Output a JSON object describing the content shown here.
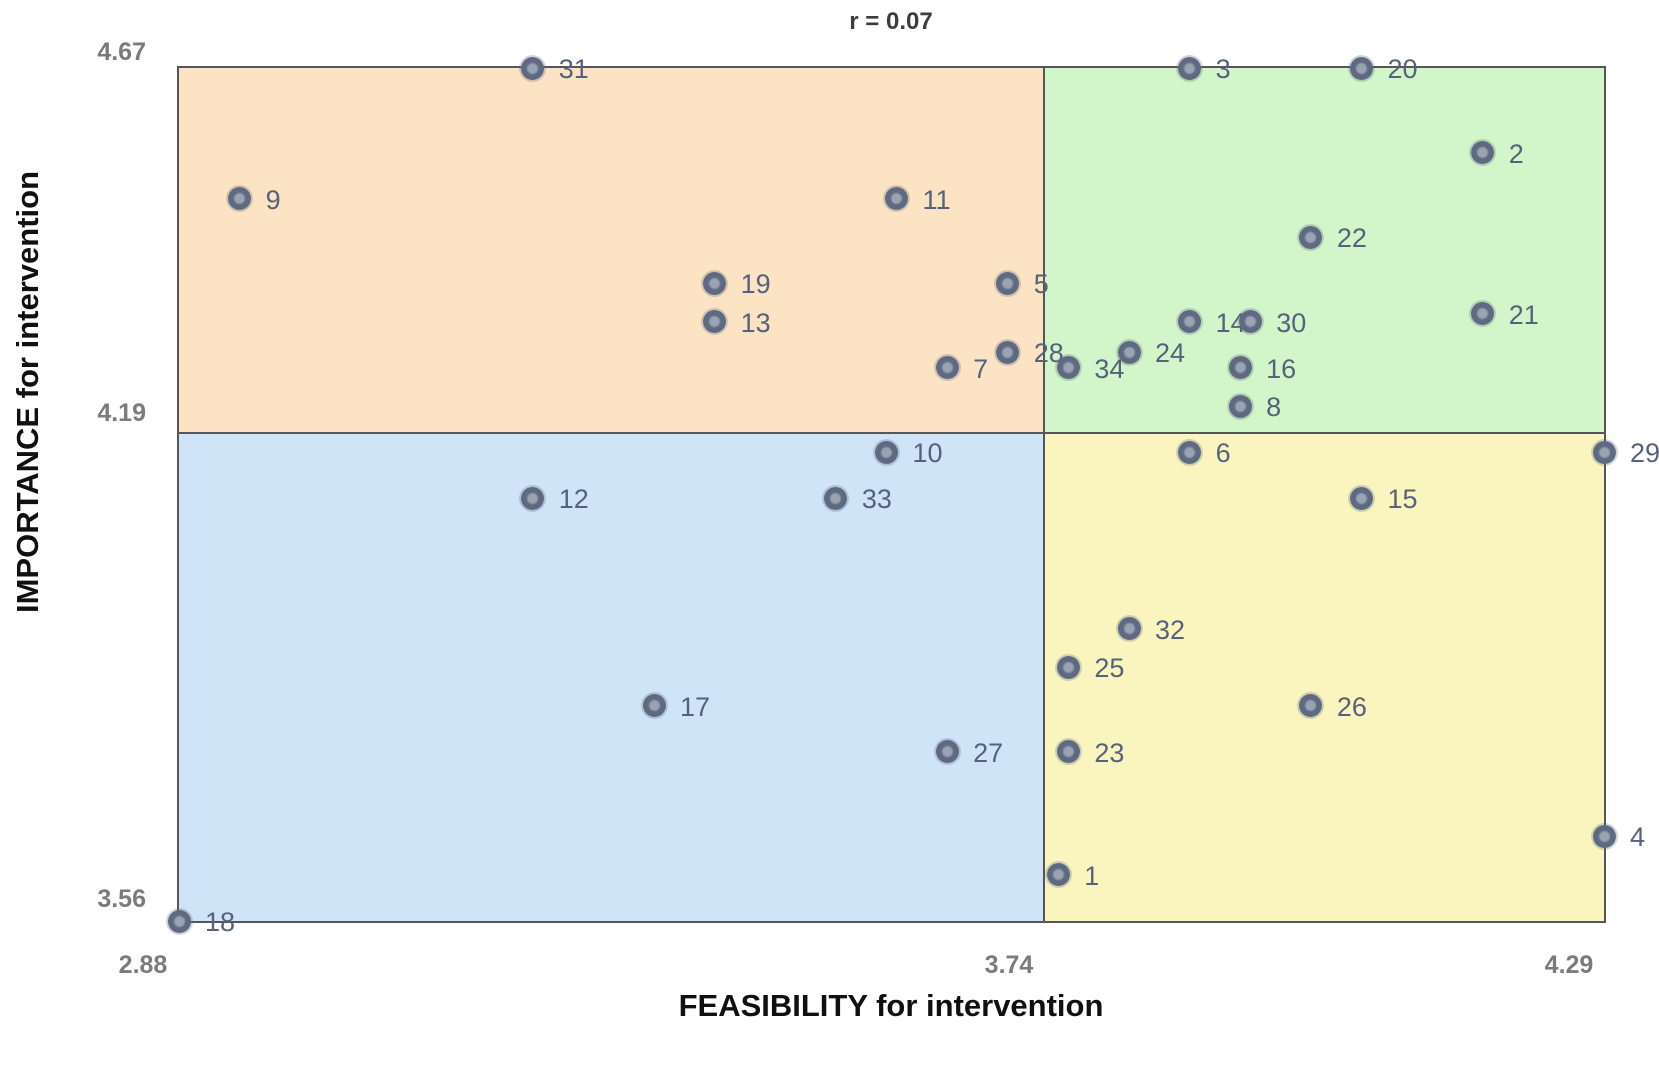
{
  "title": "r = 0.07",
  "x_axis": {
    "title": "FEASIBILITY for intervention",
    "ticks": [
      "2.88",
      "3.74",
      "4.29"
    ]
  },
  "y_axis": {
    "title": "IMPORTANCE for intervention",
    "ticks": [
      "4.67",
      "4.19",
      "3.56"
    ]
  },
  "colors": {
    "quadrant_top_left": "#FBE3C3",
    "quadrant_top_right": "#D2F5C9",
    "quadrant_bottom_left": "#CFE5F7",
    "quadrant_bottom_right": "#FAF5BE",
    "grid_line": "#56565A",
    "dot_fill": "#5F6A82",
    "dot_center": "#9AA3B2",
    "point_label": "#56627C",
    "tick_label": "#7B7B7B"
  },
  "chart_data": {
    "type": "scatter",
    "title": "r = 0.07",
    "xlabel": "FEASIBILITY for intervention",
    "ylabel": "IMPORTANCE for intervention",
    "xlim": [
      2.88,
      4.29
    ],
    "ylim": [
      3.56,
      4.67
    ],
    "x_ticks": [
      2.88,
      3.74,
      4.29
    ],
    "y_ticks": [
      4.67,
      4.19,
      3.56
    ],
    "quadrant_split": {
      "x": 3.74,
      "y": 4.19
    },
    "legend": "none",
    "grid": false,
    "points": [
      {
        "id": "1",
        "x": 3.75,
        "y": 3.62
      },
      {
        "id": "2",
        "x": 4.17,
        "y": 4.56
      },
      {
        "id": "3",
        "x": 3.88,
        "y": 4.67
      },
      {
        "id": "4",
        "x": 4.29,
        "y": 3.67
      },
      {
        "id": "5",
        "x": 3.7,
        "y": 4.39
      },
      {
        "id": "6",
        "x": 3.88,
        "y": 4.17
      },
      {
        "id": "7",
        "x": 3.64,
        "y": 4.28
      },
      {
        "id": "8",
        "x": 3.93,
        "y": 4.23
      },
      {
        "id": "9",
        "x": 2.94,
        "y": 4.5
      },
      {
        "id": "10",
        "x": 3.58,
        "y": 4.17
      },
      {
        "id": "11",
        "x": 3.59,
        "y": 4.5
      },
      {
        "id": "12",
        "x": 3.23,
        "y": 4.11
      },
      {
        "id": "13",
        "x": 3.41,
        "y": 4.34
      },
      {
        "id": "14",
        "x": 3.88,
        "y": 4.34
      },
      {
        "id": "15",
        "x": 4.05,
        "y": 4.11
      },
      {
        "id": "16",
        "x": 3.93,
        "y": 4.28
      },
      {
        "id": "17",
        "x": 3.35,
        "y": 3.84
      },
      {
        "id": "18",
        "x": 2.88,
        "y": 3.56
      },
      {
        "id": "19",
        "x": 3.41,
        "y": 4.39
      },
      {
        "id": "20",
        "x": 4.05,
        "y": 4.67
      },
      {
        "id": "21",
        "x": 4.17,
        "y": 4.35
      },
      {
        "id": "22",
        "x": 4.0,
        "y": 4.45
      },
      {
        "id": "23",
        "x": 3.76,
        "y": 3.78
      },
      {
        "id": "24",
        "x": 3.82,
        "y": 4.3
      },
      {
        "id": "25",
        "x": 3.76,
        "y": 3.89
      },
      {
        "id": "26",
        "x": 4.0,
        "y": 3.84
      },
      {
        "id": "27",
        "x": 3.64,
        "y": 3.78
      },
      {
        "id": "28",
        "x": 3.7,
        "y": 4.3
      },
      {
        "id": "29",
        "x": 4.29,
        "y": 4.17
      },
      {
        "id": "30",
        "x": 3.94,
        "y": 4.34
      },
      {
        "id": "31",
        "x": 3.23,
        "y": 4.67
      },
      {
        "id": "32",
        "x": 3.82,
        "y": 3.94
      },
      {
        "id": "33",
        "x": 3.53,
        "y": 4.11
      },
      {
        "id": "34",
        "x": 3.76,
        "y": 4.28
      }
    ]
  }
}
